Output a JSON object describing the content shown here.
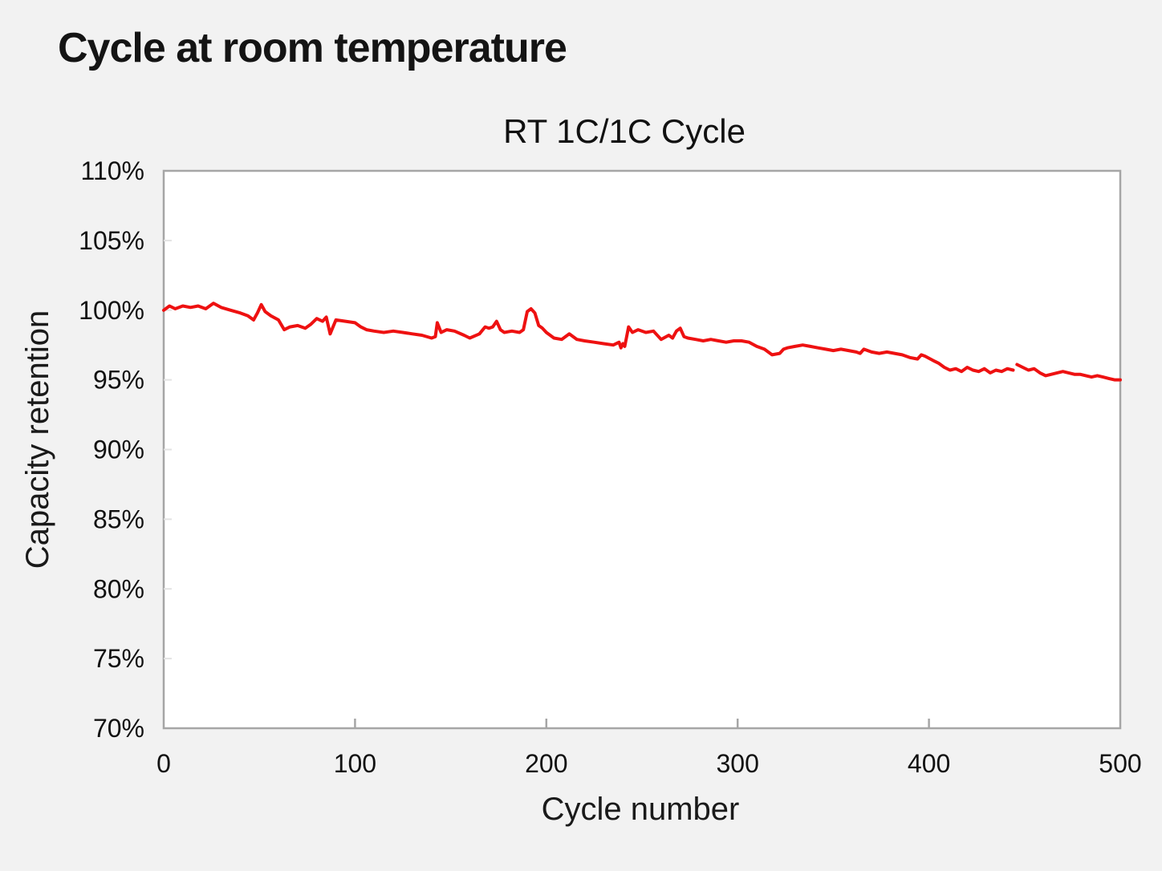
{
  "page": {
    "heading": "Cycle at room temperature"
  },
  "chart_data": {
    "type": "line",
    "title": "RT 1C/1C Cycle",
    "xlabel": "Cycle number",
    "ylabel": "Capacity retention",
    "xlim": [
      0,
      500
    ],
    "ylim": [
      70,
      110
    ],
    "x_ticks": [
      0,
      100,
      200,
      300,
      400,
      500
    ],
    "y_ticks": [
      70,
      75,
      80,
      85,
      90,
      95,
      100,
      105,
      110
    ],
    "x_tick_labels": [
      "0",
      "100",
      "200",
      "300",
      "400",
      "500"
    ],
    "y_tick_labels": [
      "70%",
      "75%",
      "80%",
      "85%",
      "90%",
      "95%",
      "100%",
      "105%",
      "110%"
    ],
    "grid": false,
    "legend": "none",
    "colors": {
      "line": "#ee1111",
      "frame": "#a6a6a6",
      "plot_background": "#ffffff"
    },
    "series": [
      {
        "color": "#ee1111",
        "segments": [
          {
            "x": [
              0,
              3,
              6,
              10,
              14,
              18,
              22,
              26,
              30,
              35,
              40,
              44,
              47,
              49,
              51,
              53,
              56,
              60,
              63,
              66,
              70,
              74,
              77,
              80,
              83,
              85,
              87,
              90,
              95,
              100,
              103,
              106,
              110,
              115,
              120,
              125,
              130,
              135,
              140,
              142,
              143,
              145,
              148,
              152,
              157,
              160,
              165,
              168,
              170,
              172,
              174,
              176,
              178,
              182,
              186,
              188,
              190,
              192,
              194,
              196,
              198,
              200,
              204,
              208,
              212,
              216,
              220,
              225,
              230,
              235,
              238,
              239,
              240,
              241,
              243,
              245,
              248,
              252,
              256,
              260,
              264,
              266,
              268,
              270,
              272,
              274,
              278,
              282,
              286,
              290,
              294,
              298,
              302,
              306,
              310,
              314,
              318,
              322,
              324,
              326,
              330,
              334,
              338,
              342,
              346,
              350,
              354,
              358,
              362,
              364,
              366,
              370,
              374,
              378,
              382,
              386,
              390,
              394,
              396,
              398,
              402,
              405,
              408,
              411,
              414,
              417,
              420,
              423,
              426,
              429,
              432,
              435,
              438,
              441,
              444
            ],
            "y": [
              100.0,
              100.3,
              100.1,
              100.3,
              100.2,
              100.3,
              100.1,
              100.5,
              100.2,
              100.0,
              99.8,
              99.6,
              99.3,
              99.8,
              100.4,
              99.9,
              99.6,
              99.3,
              98.6,
              98.8,
              98.9,
              98.7,
              99.0,
              99.4,
              99.2,
              99.5,
              98.3,
              99.3,
              99.2,
              99.1,
              98.8,
              98.6,
              98.5,
              98.4,
              98.5,
              98.4,
              98.3,
              98.2,
              98.0,
              98.1,
              99.1,
              98.4,
              98.6,
              98.5,
              98.2,
              98.0,
              98.3,
              98.8,
              98.7,
              98.8,
              99.2,
              98.6,
              98.4,
              98.5,
              98.4,
              98.6,
              99.9,
              100.1,
              99.8,
              98.9,
              98.7,
              98.4,
              98.0,
              97.9,
              98.3,
              97.9,
              97.8,
              97.7,
              97.6,
              97.5,
              97.7,
              97.3,
              97.6,
              97.4,
              98.8,
              98.4,
              98.6,
              98.4,
              98.5,
              97.9,
              98.2,
              98.0,
              98.5,
              98.7,
              98.1,
              98.0,
              97.9,
              97.8,
              97.9,
              97.8,
              97.7,
              97.8,
              97.8,
              97.7,
              97.4,
              97.2,
              96.8,
              96.9,
              97.2,
              97.3,
              97.4,
              97.5,
              97.4,
              97.3,
              97.2,
              97.1,
              97.2,
              97.1,
              97.0,
              96.9,
              97.2,
              97.0,
              96.9,
              97.0,
              96.9,
              96.8,
              96.6,
              96.5,
              96.8,
              96.7,
              96.4,
              96.2,
              95.9,
              95.7,
              95.8,
              95.6,
              95.9,
              95.7,
              95.6,
              95.8,
              95.5,
              95.7,
              95.6,
              95.8,
              95.7
            ]
          },
          {
            "x": [
              446,
              449,
              452,
              455,
              458,
              461,
              464,
              467,
              470,
              473,
              476,
              479,
              482,
              485,
              488,
              491,
              494,
              497,
              500
            ],
            "y": [
              96.1,
              95.9,
              95.7,
              95.8,
              95.5,
              95.3,
              95.4,
              95.5,
              95.6,
              95.5,
              95.4,
              95.4,
              95.3,
              95.2,
              95.3,
              95.2,
              95.1,
              95.0,
              95.0
            ]
          }
        ]
      }
    ]
  }
}
